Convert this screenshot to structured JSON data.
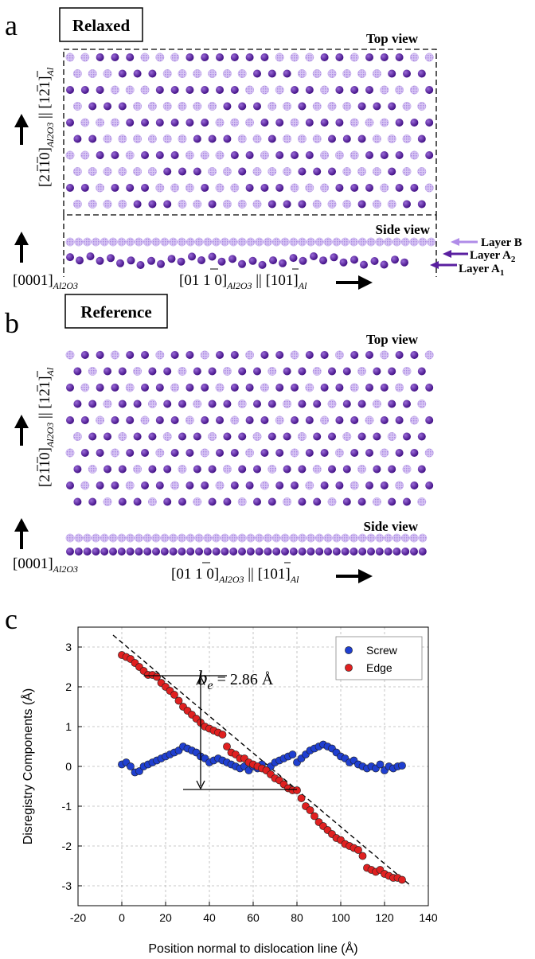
{
  "panel_a": {
    "letter": "a",
    "box_label": "Relaxed",
    "top_view": "Top view",
    "side_view": "Side view",
    "vert_axis_label": "[2 1 1 0]Al2O3 || [1 2 1]Al",
    "vert_axis_main": "[2",
    "vert_axis_digits": "110]",
    "vert_axis_sub": "Al2O3",
    "vert_axis_par": "||",
    "vert_axis_al": "[121]",
    "vert_axis_al_sub": "Al",
    "side_axis": "[0001]",
    "side_axis_sub": "Al2O3",
    "horiz_axis": "[01 1 0]",
    "horiz_axis_sub": "Al2O3",
    "horiz_axis_par": "||",
    "horiz_axis_al": "[101]",
    "horiz_axis_al_sub": "Al",
    "layer_b": "Layer B",
    "layer_a2": "Layer A",
    "layer_a2_sub": "2",
    "layer_a1": "Layer A",
    "layer_a1_sub": "1"
  },
  "panel_b": {
    "letter": "b",
    "box_label": "Reference",
    "top_view": "Top view",
    "side_view": "Side view",
    "side_axis": "[0001]",
    "side_axis_sub": "Al2O3",
    "horiz_axis": "[01 1 0]",
    "horiz_axis_sub": "Al2O3",
    "horiz_axis_par": "||",
    "horiz_axis_al": "[101]",
    "horiz_axis_al_sub": "Al"
  },
  "panel_c": {
    "letter": "c",
    "annotation": "b",
    "annotation_sub": "e",
    "annotation_value": "= 2.86 Å"
  },
  "colors": {
    "dark_atom": "#5a1fa0",
    "light_atom": "#b79ae6",
    "screw": "#1f3fd0",
    "edge": "#e02020"
  },
  "chart_data": {
    "type": "scatter",
    "xlabel": "Position normal to dislocation line (Å)",
    "ylabel": "Disregistry Components (Å)",
    "xlim": [
      -20,
      140
    ],
    "ylim": [
      -3.5,
      3.5
    ],
    "xticks": [
      -20,
      0,
      20,
      40,
      60,
      80,
      100,
      120,
      140
    ],
    "yticks": [
      -3,
      -2,
      -1,
      0,
      1,
      2,
      3
    ],
    "grid": true,
    "legend_position": "top-right",
    "series": [
      {
        "name": "Screw",
        "x": [
          0,
          2,
          4,
          6,
          8,
          10,
          12,
          14,
          16,
          18,
          20,
          22,
          24,
          26,
          28,
          30,
          32,
          34,
          36,
          38,
          40,
          42,
          44,
          46,
          48,
          50,
          52,
          54,
          56,
          58,
          60,
          62,
          64,
          66,
          68,
          70,
          72,
          74,
          76,
          78,
          80,
          82,
          84,
          86,
          88,
          90,
          92,
          94,
          96,
          98,
          100,
          102,
          104,
          106,
          108,
          110,
          112,
          114,
          116,
          118,
          120,
          122,
          124,
          126,
          128
        ],
        "y": [
          0.05,
          0.1,
          0.0,
          -0.15,
          -0.12,
          0.0,
          0.05,
          0.1,
          0.15,
          0.2,
          0.25,
          0.3,
          0.35,
          0.4,
          0.5,
          0.45,
          0.4,
          0.35,
          0.25,
          0.2,
          0.1,
          0.15,
          0.2,
          0.15,
          0.1,
          0.05,
          0.0,
          -0.05,
          0.0,
          -0.1,
          0.0,
          -0.05,
          0.05,
          -0.1,
          0.0,
          0.1,
          0.15,
          0.2,
          0.25,
          0.3,
          0.1,
          0.2,
          0.3,
          0.4,
          0.45,
          0.5,
          0.55,
          0.5,
          0.45,
          0.35,
          0.25,
          0.2,
          0.1,
          0.15,
          0.05,
          0.0,
          -0.05,
          0.0,
          -0.05,
          0.05,
          -0.1,
          0.0,
          -0.05,
          0.0,
          0.02
        ]
      },
      {
        "name": "Edge",
        "x": [
          0,
          2,
          4,
          6,
          8,
          10,
          12,
          14,
          16,
          18,
          20,
          22,
          24,
          26,
          28,
          30,
          32,
          34,
          36,
          38,
          40,
          42,
          44,
          46,
          48,
          50,
          52,
          54,
          56,
          58,
          60,
          62,
          64,
          66,
          68,
          70,
          72,
          74,
          76,
          78,
          80,
          82,
          84,
          86,
          88,
          90,
          92,
          94,
          96,
          98,
          100,
          102,
          104,
          106,
          108,
          110,
          112,
          114,
          116,
          118,
          120,
          122,
          124,
          126,
          128
        ],
        "y": [
          2.8,
          2.75,
          2.7,
          2.6,
          2.5,
          2.4,
          2.3,
          2.3,
          2.25,
          2.1,
          2.0,
          1.9,
          1.8,
          1.65,
          1.5,
          1.4,
          1.3,
          1.2,
          1.1,
          1.0,
          0.95,
          0.9,
          0.85,
          0.8,
          0.5,
          0.35,
          0.3,
          0.2,
          0.2,
          0.1,
          0.05,
          0.0,
          -0.05,
          -0.1,
          -0.2,
          -0.3,
          -0.35,
          -0.45,
          -0.55,
          -0.6,
          -0.6,
          -0.8,
          -1.0,
          -1.1,
          -1.25,
          -1.4,
          -1.5,
          -1.6,
          -1.7,
          -1.8,
          -1.85,
          -1.95,
          -2.0,
          -2.05,
          -2.1,
          -2.25,
          -2.55,
          -2.6,
          -2.65,
          -2.6,
          -2.7,
          -2.75,
          -2.8,
          -2.8,
          -2.85
        ]
      }
    ]
  }
}
